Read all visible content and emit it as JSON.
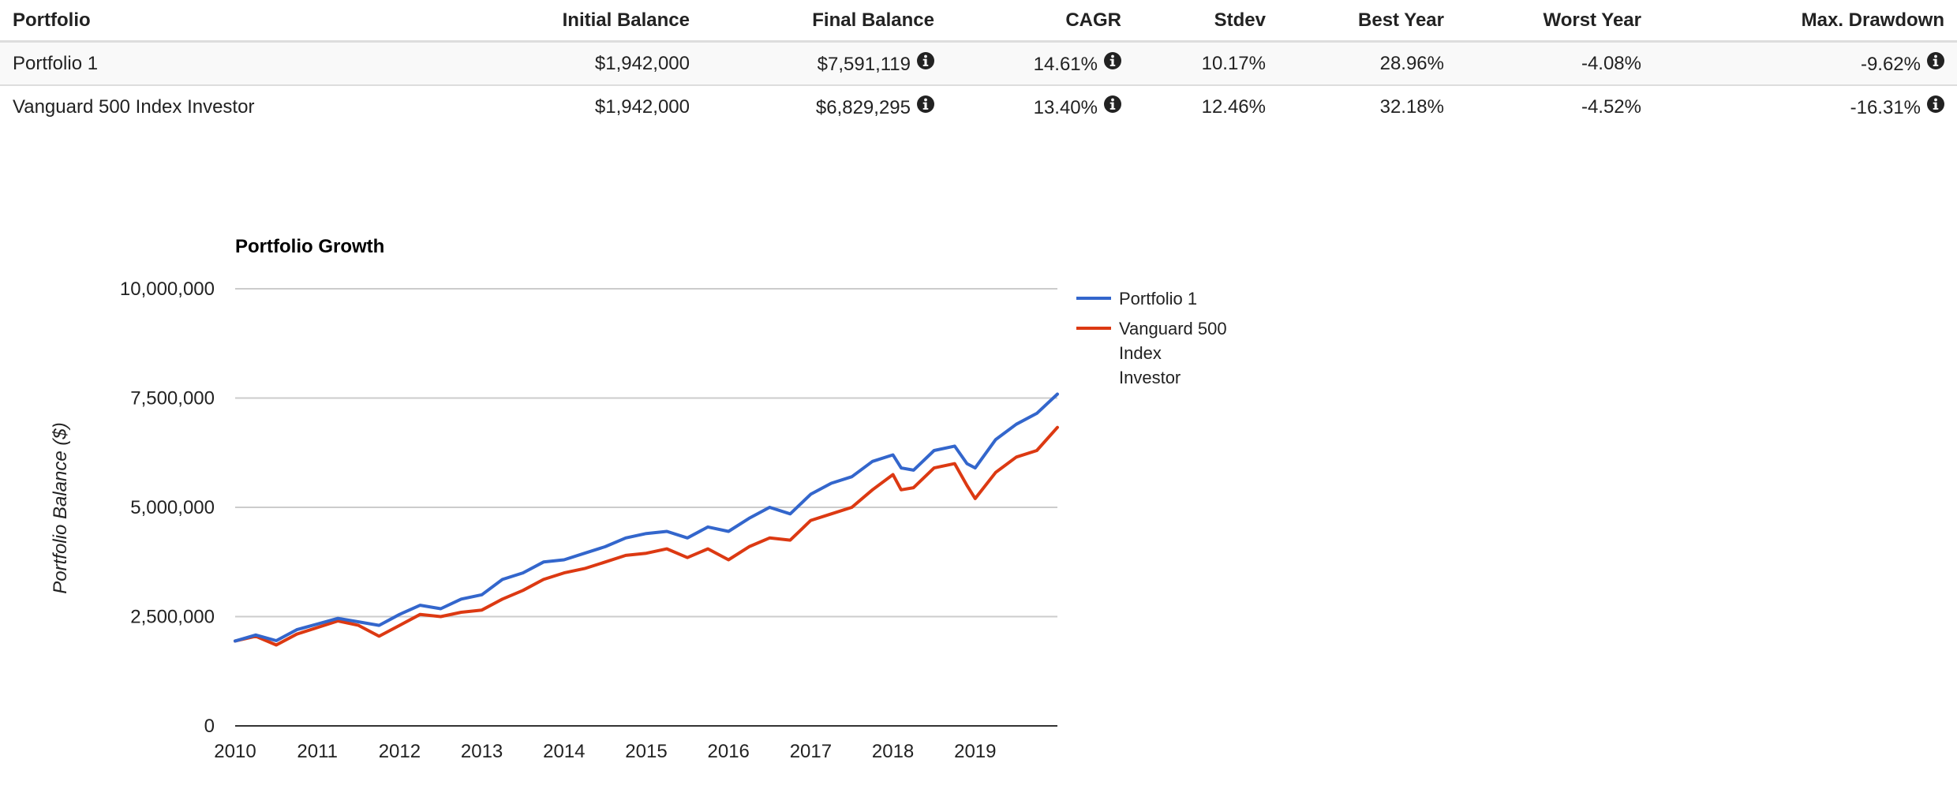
{
  "table": {
    "headers": [
      "Portfolio",
      "Initial Balance",
      "Final Balance",
      "CAGR",
      "Stdev",
      "Best Year",
      "Worst Year",
      "Max. Drawdown"
    ],
    "rows": [
      {
        "portfolio": "Portfolio 1",
        "initial_balance": "$1,942,000",
        "final_balance": "$7,591,119",
        "cagr": "14.61%",
        "stdev": "10.17%",
        "best_year": "28.96%",
        "worst_year": "-4.08%",
        "max_drawdown": "-9.62%"
      },
      {
        "portfolio": "Vanguard 500 Index Investor",
        "initial_balance": "$1,942,000",
        "final_balance": "$6,829,295",
        "cagr": "13.40%",
        "stdev": "12.46%",
        "best_year": "32.18%",
        "worst_year": "-4.52%",
        "max_drawdown": "-16.31%"
      }
    ]
  },
  "chart_data": {
    "type": "line",
    "title": "Portfolio Growth",
    "xlabel": "",
    "ylabel": "Portfolio Balance ($)",
    "xlim": [
      2010,
      2020
    ],
    "ylim": [
      0,
      10000000
    ],
    "x_ticks": [
      "2010",
      "2011",
      "2012",
      "2013",
      "2014",
      "2015",
      "2016",
      "2017",
      "2018",
      "2019"
    ],
    "y_ticks": [
      "0",
      "2,500,000",
      "5,000,000",
      "7,500,000",
      "10,000,000"
    ],
    "grid": true,
    "legend_position": "right",
    "series": [
      {
        "name": "Portfolio 1",
        "color": "#3366cc",
        "x": [
          2010.0,
          2010.25,
          2010.5,
          2010.75,
          2011.0,
          2011.25,
          2011.5,
          2011.75,
          2012.0,
          2012.25,
          2012.5,
          2012.75,
          2013.0,
          2013.25,
          2013.5,
          2013.75,
          2014.0,
          2014.25,
          2014.5,
          2014.75,
          2015.0,
          2015.25,
          2015.5,
          2015.75,
          2016.0,
          2016.25,
          2016.5,
          2016.75,
          2017.0,
          2017.25,
          2017.5,
          2017.75,
          2018.0,
          2018.1,
          2018.25,
          2018.5,
          2018.75,
          2018.9,
          2019.0,
          2019.25,
          2019.5,
          2019.75,
          2020.0
        ],
        "y": [
          1942000,
          2080000,
          1950000,
          2200000,
          2330000,
          2460000,
          2380000,
          2300000,
          2550000,
          2760000,
          2680000,
          2900000,
          3000000,
          3350000,
          3500000,
          3750000,
          3800000,
          3950000,
          4100000,
          4300000,
          4400000,
          4450000,
          4300000,
          4550000,
          4450000,
          4750000,
          5000000,
          4850000,
          5300000,
          5550000,
          5700000,
          6050000,
          6200000,
          5900000,
          5850000,
          6300000,
          6400000,
          6000000,
          5900000,
          6550000,
          6900000,
          7150000,
          7591119
        ]
      },
      {
        "name": "Vanguard 500 Index Investor",
        "color": "#dc3912",
        "x": [
          2010.0,
          2010.25,
          2010.5,
          2010.75,
          2011.0,
          2011.25,
          2011.5,
          2011.75,
          2012.0,
          2012.25,
          2012.5,
          2012.75,
          2013.0,
          2013.25,
          2013.5,
          2013.75,
          2014.0,
          2014.25,
          2014.5,
          2014.75,
          2015.0,
          2015.25,
          2015.5,
          2015.75,
          2016.0,
          2016.25,
          2016.5,
          2016.75,
          2017.0,
          2017.25,
          2017.5,
          2017.75,
          2018.0,
          2018.1,
          2018.25,
          2018.5,
          2018.75,
          2018.9,
          2019.0,
          2019.25,
          2019.5,
          2019.75,
          2020.0
        ],
        "y": [
          1942000,
          2050000,
          1850000,
          2100000,
          2250000,
          2400000,
          2300000,
          2050000,
          2300000,
          2550000,
          2500000,
          2600000,
          2650000,
          2900000,
          3100000,
          3350000,
          3500000,
          3600000,
          3750000,
          3900000,
          3950000,
          4050000,
          3850000,
          4050000,
          3800000,
          4100000,
          4300000,
          4250000,
          4700000,
          4850000,
          5000000,
          5400000,
          5750000,
          5400000,
          5450000,
          5900000,
          6000000,
          5500000,
          5200000,
          5800000,
          6150000,
          6300000,
          6829295
        ]
      }
    ]
  }
}
